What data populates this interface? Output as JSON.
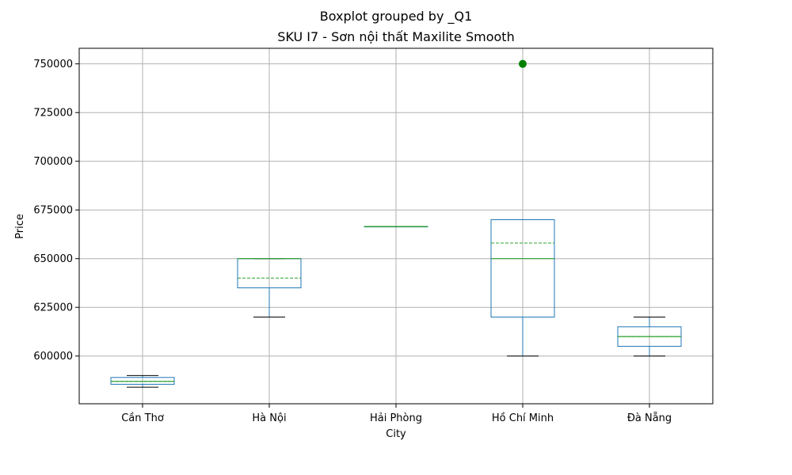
{
  "chart_data": {
    "type": "boxplot",
    "suptitle": "Boxplot grouped by _Q1",
    "title": "SKU I7 - Sơn nội thất Maxilite Smooth",
    "xlabel": "City",
    "ylabel": "Price",
    "ylim": [
      575500,
      758000
    ],
    "yticks": [
      600000,
      625000,
      650000,
      675000,
      700000,
      725000,
      750000
    ],
    "ytick_labels": [
      "600000",
      "625000",
      "650000",
      "675000",
      "700000",
      "725000",
      "750000"
    ],
    "grid": true,
    "categories": [
      "Cần Thơ",
      "Hà Nội",
      "Hải Phòng",
      "Hồ Chí Minh",
      "Đà Nẵng"
    ],
    "boxes": [
      {
        "whisker_low": 584000,
        "q1": 585500,
        "median": 587000,
        "mean": 587000,
        "q3": 589000,
        "whisker_high": 590000,
        "outliers": []
      },
      {
        "whisker_low": 620000,
        "q1": 635000,
        "median": 650000,
        "mean": 640000,
        "q3": 650000,
        "whisker_high": 650000,
        "outliers": []
      },
      {
        "whisker_low": 666500,
        "q1": 666500,
        "median": 666500,
        "mean": 666500,
        "q3": 666500,
        "whisker_high": 666500,
        "outliers": []
      },
      {
        "whisker_low": 600000,
        "q1": 620000,
        "median": 650000,
        "mean": 658000,
        "q3": 670000,
        "whisker_high": 670000,
        "outliers": [
          750000
        ]
      },
      {
        "whisker_low": 600000,
        "q1": 605000,
        "median": 610000,
        "mean": 610000,
        "q3": 615000,
        "whisker_high": 620000,
        "outliers": []
      }
    ],
    "colors": {
      "box": "#1f77b4",
      "median": "#2ca02c",
      "mean": "#2ca02c",
      "whisker": "#1f77b4",
      "cap": "#000000",
      "outlier": "#008000",
      "grid": "#b0b0b0"
    }
  }
}
